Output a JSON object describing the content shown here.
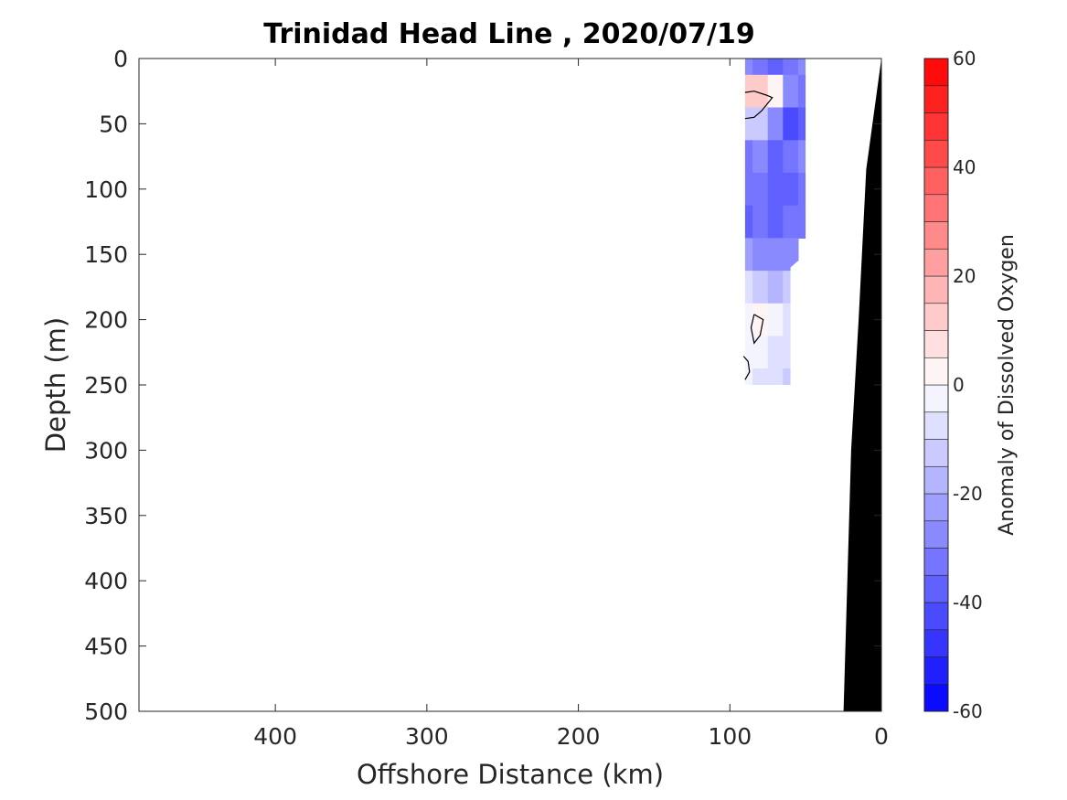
{
  "chart_data": {
    "type": "heatmap",
    "title": "Trinidad Head Line , 2020/07/19",
    "xlabel": "Offshore Distance (km)",
    "ylabel": "Depth (m)",
    "colorbar_label": "Anomaly of Dissolved Oxygen",
    "x_direction": "reversed",
    "y_direction": "reversed",
    "xlim": [
      0,
      490
    ],
    "ylim": [
      0,
      500
    ],
    "xticks": [
      400,
      300,
      200,
      100,
      0
    ],
    "yticks": [
      0,
      50,
      100,
      150,
      200,
      250,
      300,
      350,
      400,
      450,
      500
    ],
    "colorbar_limits": [
      -60,
      60
    ],
    "colorbar_ticks": [
      60,
      40,
      20,
      0,
      -20,
      -40,
      -60
    ],
    "colorbar_step": 5,
    "colormap": "blue-white-red",
    "colors": {
      "negative": "#0000ff",
      "zero": "#ffffff",
      "positive": "#ff0000",
      "bathymetry": "#000000"
    },
    "stations_km": [
      90,
      80,
      70,
      60,
      50
    ],
    "depths_m": [
      0,
      25,
      50,
      75,
      100,
      125,
      150,
      175,
      200,
      225,
      250
    ],
    "anomaly_grid": [
      [
        -30,
        -35,
        -38,
        -35,
        -30
      ],
      [
        10,
        12,
        0,
        -30,
        -33
      ],
      [
        -15,
        -15,
        -30,
        -42,
        -40
      ],
      [
        -35,
        -30,
        -38,
        -35,
        -30
      ],
      [
        -35,
        -35,
        -40,
        -38,
        -35
      ],
      [
        -40,
        -35,
        -38,
        -35,
        -35
      ],
      [
        -25,
        -30,
        -28,
        -30,
        null
      ],
      [
        -8,
        -12,
        -20,
        -15,
        null
      ],
      [
        -2,
        2,
        -5,
        -8,
        null
      ],
      [
        -5,
        -2,
        -8,
        -10,
        null
      ],
      [
        -5,
        -8,
        -10,
        -12,
        null
      ]
    ],
    "data_extent": [
      {
        "x": 90,
        "y": 0
      },
      {
        "x": 50,
        "y": 0
      },
      {
        "x": 50,
        "y": 150
      },
      {
        "x": 60,
        "y": 160
      },
      {
        "x": 60,
        "y": 250
      },
      {
        "x": 90,
        "y": 250
      }
    ],
    "bathymetry": [
      {
        "x": 0,
        "y": 0
      },
      {
        "x": 10,
        "y": 85
      },
      {
        "x": 15,
        "y": 200
      },
      {
        "x": 20,
        "y": 300
      },
      {
        "x": 25,
        "y": 500
      },
      {
        "x": 0,
        "y": 500
      }
    ],
    "zero_contours": [
      [
        {
          "x": 90,
          "y": 26
        },
        {
          "x": 84,
          "y": 25
        },
        {
          "x": 76,
          "y": 28
        },
        {
          "x": 72,
          "y": 30
        },
        {
          "x": 79,
          "y": 40
        },
        {
          "x": 84,
          "y": 45
        },
        {
          "x": 90,
          "y": 46
        }
      ],
      [
        {
          "x": 84,
          "y": 196
        },
        {
          "x": 78,
          "y": 200
        },
        {
          "x": 80,
          "y": 212
        },
        {
          "x": 84,
          "y": 218
        },
        {
          "x": 86,
          "y": 206
        },
        {
          "x": 84,
          "y": 196
        }
      ],
      [
        {
          "x": 91,
          "y": 228
        },
        {
          "x": 88,
          "y": 232
        },
        {
          "x": 87,
          "y": 240
        },
        {
          "x": 90,
          "y": 246
        }
      ]
    ]
  }
}
